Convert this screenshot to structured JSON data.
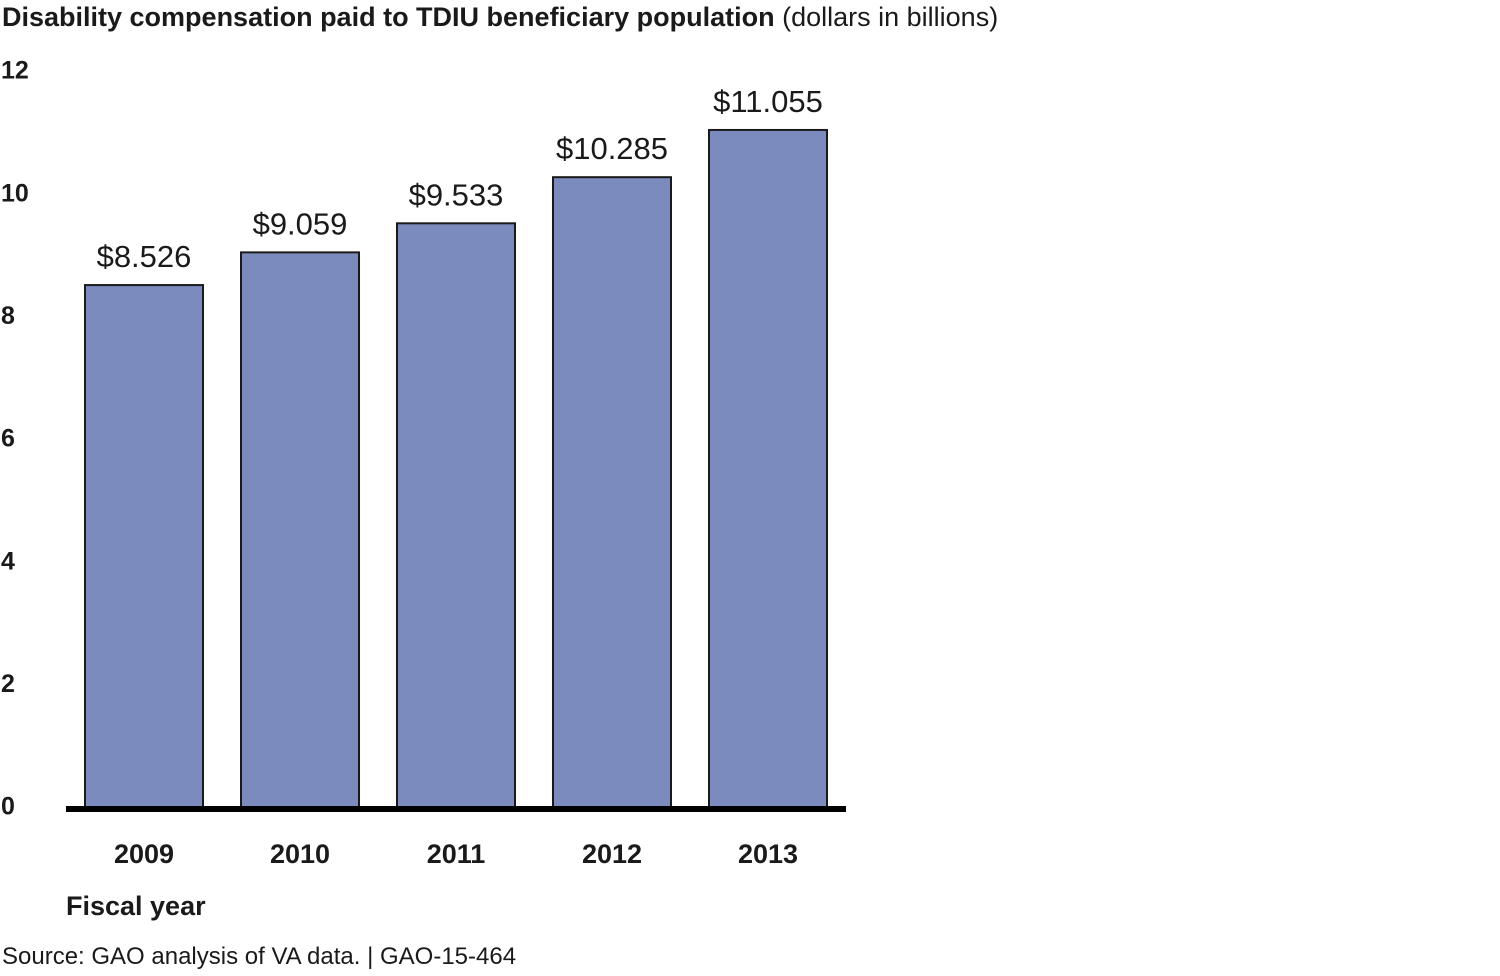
{
  "title": {
    "main": "Disability compensation paid to TDIU beneficiary population",
    "unit": "(dollars in billions)"
  },
  "source": "Source: GAO analysis of VA data.  |  GAO-15-464",
  "chart_data": {
    "type": "bar",
    "title": "Disability compensation paid to TDIU beneficiary population (dollars in billions)",
    "xlabel": "Fiscal year",
    "ylabel": "",
    "categories": [
      "2009",
      "2010",
      "2011",
      "2012",
      "2013"
    ],
    "values": [
      8.526,
      9.059,
      9.533,
      10.285,
      11.055
    ],
    "value_labels": [
      "$8.526",
      "$9.059",
      "$9.533",
      "$10.285",
      "$11.055"
    ],
    "ylim": [
      0,
      12
    ],
    "yticks": [
      0,
      2,
      4,
      6,
      8,
      10,
      12
    ],
    "grid": false,
    "legend": "none",
    "bar_color": "#7b8bbd",
    "bar_edge_color": "#1a1a1a",
    "axis_color": "#000000"
  }
}
